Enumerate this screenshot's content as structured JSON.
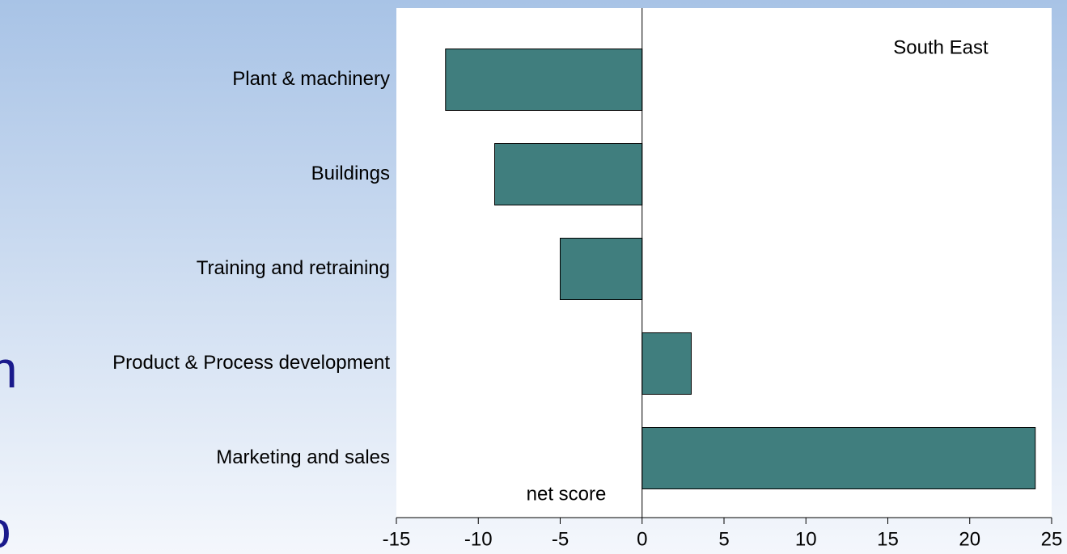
{
  "chart_data": {
    "type": "barh",
    "categories": [
      "Plant & machinery",
      "Buildings",
      "Training and retraining",
      "Product & Process development",
      "Marketing and sales"
    ],
    "values": [
      -12,
      -9,
      -5,
      3,
      24
    ],
    "color": "#407e7e",
    "xlim": [
      -15,
      25
    ],
    "xticks": [
      -15,
      -10,
      -5,
      0,
      5,
      10,
      15,
      20,
      25
    ],
    "annotations": [
      "South East",
      "net score"
    ]
  },
  "slide_text_fragments": [
    "n",
    "o"
  ]
}
